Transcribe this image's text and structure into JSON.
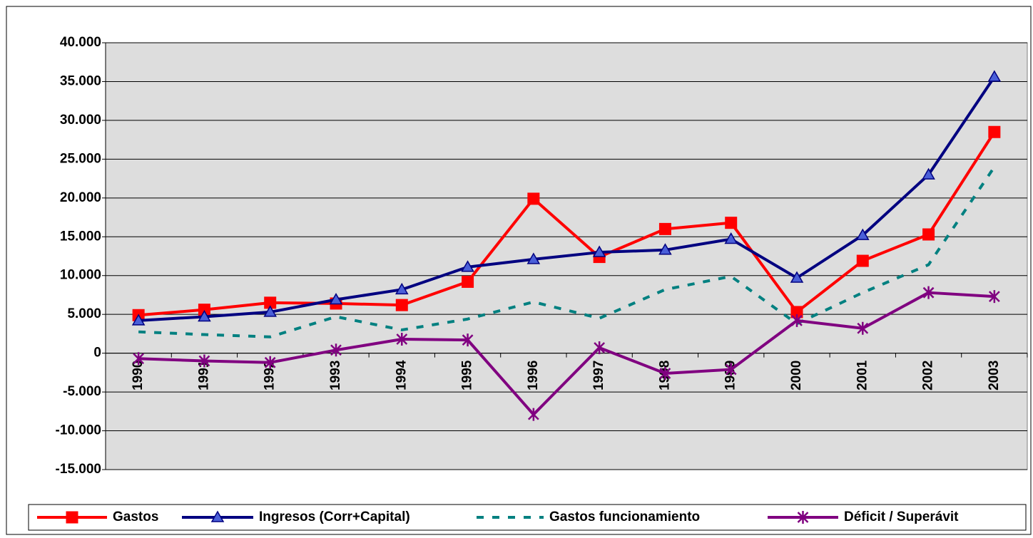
{
  "chart_data": {
    "type": "line",
    "categories": [
      "1990",
      "1991",
      "1992",
      "1993",
      "1994",
      "1995",
      "1996",
      "1997",
      "1998",
      "1999",
      "2000",
      "2001",
      "2002",
      "2003"
    ],
    "series": [
      {
        "name": "Gastos",
        "color": "#ff0000",
        "marker": "square",
        "dash": false,
        "values": [
          4900,
          5600,
          6500,
          6400,
          6200,
          9200,
          19900,
          12400,
          16000,
          16800,
          5300,
          11900,
          15300,
          28500
        ]
      },
      {
        "name": "Ingresos (Corr+Capital)",
        "color": "#000080",
        "marker": "triangle",
        "dash": false,
        "values": [
          4200,
          4700,
          5300,
          6900,
          8200,
          11100,
          12100,
          13000,
          13300,
          14700,
          9700,
          15200,
          23000,
          35600
        ]
      },
      {
        "name": "Gastos funcionamiento",
        "color": "#008080",
        "marker": "none",
        "dash": true,
        "values": [
          2750,
          2400,
          2100,
          4700,
          3000,
          4400,
          6600,
          4500,
          8200,
          9900,
          3800,
          7800,
          11400,
          24000
        ]
      },
      {
        "name": "Déficit / Superávit",
        "color": "#800080",
        "marker": "star",
        "dash": false,
        "values": [
          -700,
          -1000,
          -1200,
          400,
          1800,
          1700,
          -7900,
          700,
          -2600,
          -2100,
          4200,
          3200,
          7800,
          7300
        ]
      }
    ],
    "ylim": [
      -15000,
      40000
    ],
    "yticks": [
      {
        "value": -15000,
        "label": "-15.000"
      },
      {
        "value": -10000,
        "label": "-10.000"
      },
      {
        "value": -5000,
        "label": "-5.000"
      },
      0,
      {
        "value": 5000,
        "label": "5.000"
      },
      {
        "value": 10000,
        "label": "10.000"
      },
      {
        "value": 15000,
        "label": "15.000"
      },
      {
        "value": 20000,
        "label": "20.000"
      },
      {
        "value": 25000,
        "label": "25.000"
      },
      {
        "value": 30000,
        "label": "30.000"
      },
      {
        "value": 35000,
        "label": "35.000"
      },
      {
        "value": 40000,
        "label": "40.000"
      }
    ],
    "grid": true,
    "legend": "bottom"
  }
}
